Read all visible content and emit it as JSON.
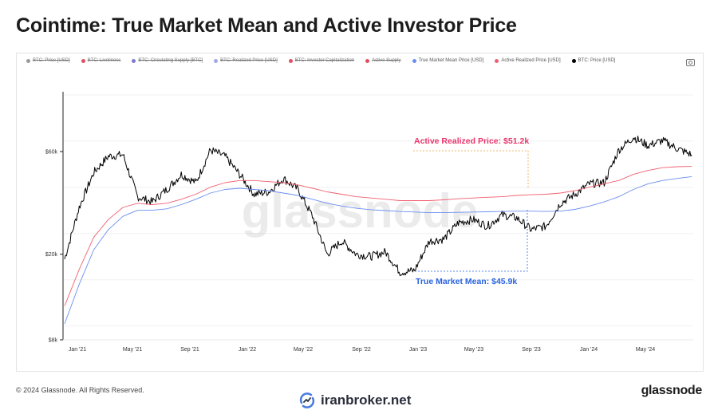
{
  "title": "Cointime: True Market Mean and Active Investor Price",
  "legend": [
    {
      "label": "BTC: Price [USD]",
      "color": "#9a9a9a",
      "active": false
    },
    {
      "label": "BTC: Liveliness",
      "color": "#e05060",
      "active": false
    },
    {
      "label": "BTC: Circulating Supply [BTC]",
      "color": "#7a7ad0",
      "active": false
    },
    {
      "label": "BTC: Realized Price [USD]",
      "color": "#a0a8e0",
      "active": false
    },
    {
      "label": "BTC: Investor Capitalization",
      "color": "#e05060",
      "active": false
    },
    {
      "label": "Active Supply",
      "color": "#e05060",
      "active": false
    },
    {
      "label": "True Market Mean Price [USD]",
      "color": "#6b8ef0",
      "active": true
    },
    {
      "label": "Active Realized Price [USD]",
      "color": "#f06070",
      "active": true
    },
    {
      "label": "BTC: Price [USD]",
      "color": "#000000",
      "active": true
    }
  ],
  "watermark": "glassnode",
  "annotations": {
    "active_realized": "Active Realized Price: $51.2k",
    "true_market_mean": "True Market Mean: $45.9k"
  },
  "chart_data": {
    "type": "line",
    "x_ticks": [
      "Jan '21",
      "May '21",
      "Sep '21",
      "Jan '22",
      "May '22",
      "Sep '22",
      "Jan '23",
      "May '23",
      "Sep '23",
      "Jan '24",
      "May '24"
    ],
    "y_ticks": [
      "$8k",
      "$20k",
      "$60k"
    ],
    "y_scale": "log",
    "ylim": [
      8000,
      110000
    ],
    "x": [
      "2020-12",
      "2021-01",
      "2021-02",
      "2021-03",
      "2021-04",
      "2021-05",
      "2021-06",
      "2021-07",
      "2021-08",
      "2021-09",
      "2021-10",
      "2021-11",
      "2021-12",
      "2022-01",
      "2022-02",
      "2022-03",
      "2022-04",
      "2022-05",
      "2022-06",
      "2022-07",
      "2022-08",
      "2022-09",
      "2022-10",
      "2022-11",
      "2022-12",
      "2023-01",
      "2023-02",
      "2023-03",
      "2023-04",
      "2023-05",
      "2023-06",
      "2023-07",
      "2023-08",
      "2023-09",
      "2023-10",
      "2023-11",
      "2023-12",
      "2024-01",
      "2024-02",
      "2024-03",
      "2024-04",
      "2024-05",
      "2024-06",
      "2024-07"
    ],
    "series": [
      {
        "name": "BTC: Price [USD]",
        "color": "#000000",
        "values": [
          19000,
          33000,
          48000,
          57000,
          58000,
          37000,
          35000,
          40000,
          47000,
          43000,
          61000,
          57000,
          47000,
          38000,
          39000,
          45000,
          40000,
          30000,
          20000,
          23000,
          20000,
          19500,
          20500,
          16500,
          16800,
          23000,
          23500,
          28000,
          29000,
          27000,
          30500,
          29500,
          26000,
          27000,
          34500,
          38000,
          42500,
          43000,
          61000,
          70000,
          64000,
          67500,
          62000,
          58000
        ]
      },
      {
        "name": "Active Realized Price [USD]",
        "color": "#f06070",
        "values": [
          11500,
          17000,
          24000,
          29000,
          33000,
          34500,
          34000,
          34500,
          36000,
          38000,
          41000,
          43000,
          44000,
          44000,
          43500,
          43000,
          42000,
          40500,
          39000,
          38000,
          37000,
          36500,
          36000,
          35500,
          35500,
          35500,
          35800,
          36200,
          36500,
          36800,
          37000,
          37500,
          37800,
          38000,
          38500,
          39500,
          41000,
          42500,
          44000,
          47000,
          49000,
          50500,
          51000,
          51200
        ]
      },
      {
        "name": "True Market Mean Price [USD]",
        "color": "#6b8ef0",
        "values": [
          9500,
          14500,
          21000,
          26000,
          30000,
          32000,
          32000,
          32500,
          34000,
          36000,
          38500,
          40000,
          40500,
          40000,
          39500,
          38500,
          37500,
          36000,
          34500,
          33500,
          32700,
          32200,
          31900,
          31600,
          31400,
          31200,
          31200,
          31300,
          31400,
          31500,
          31600,
          31700,
          31700,
          31600,
          31700,
          32300,
          33500,
          35000,
          37000,
          40000,
          42500,
          44000,
          45000,
          45900
        ]
      }
    ]
  },
  "footer": {
    "copyright": "© 2024 Glassnode. All Rights Reserved.",
    "brand": "glassnode",
    "broker": "iranbroker.net"
  }
}
